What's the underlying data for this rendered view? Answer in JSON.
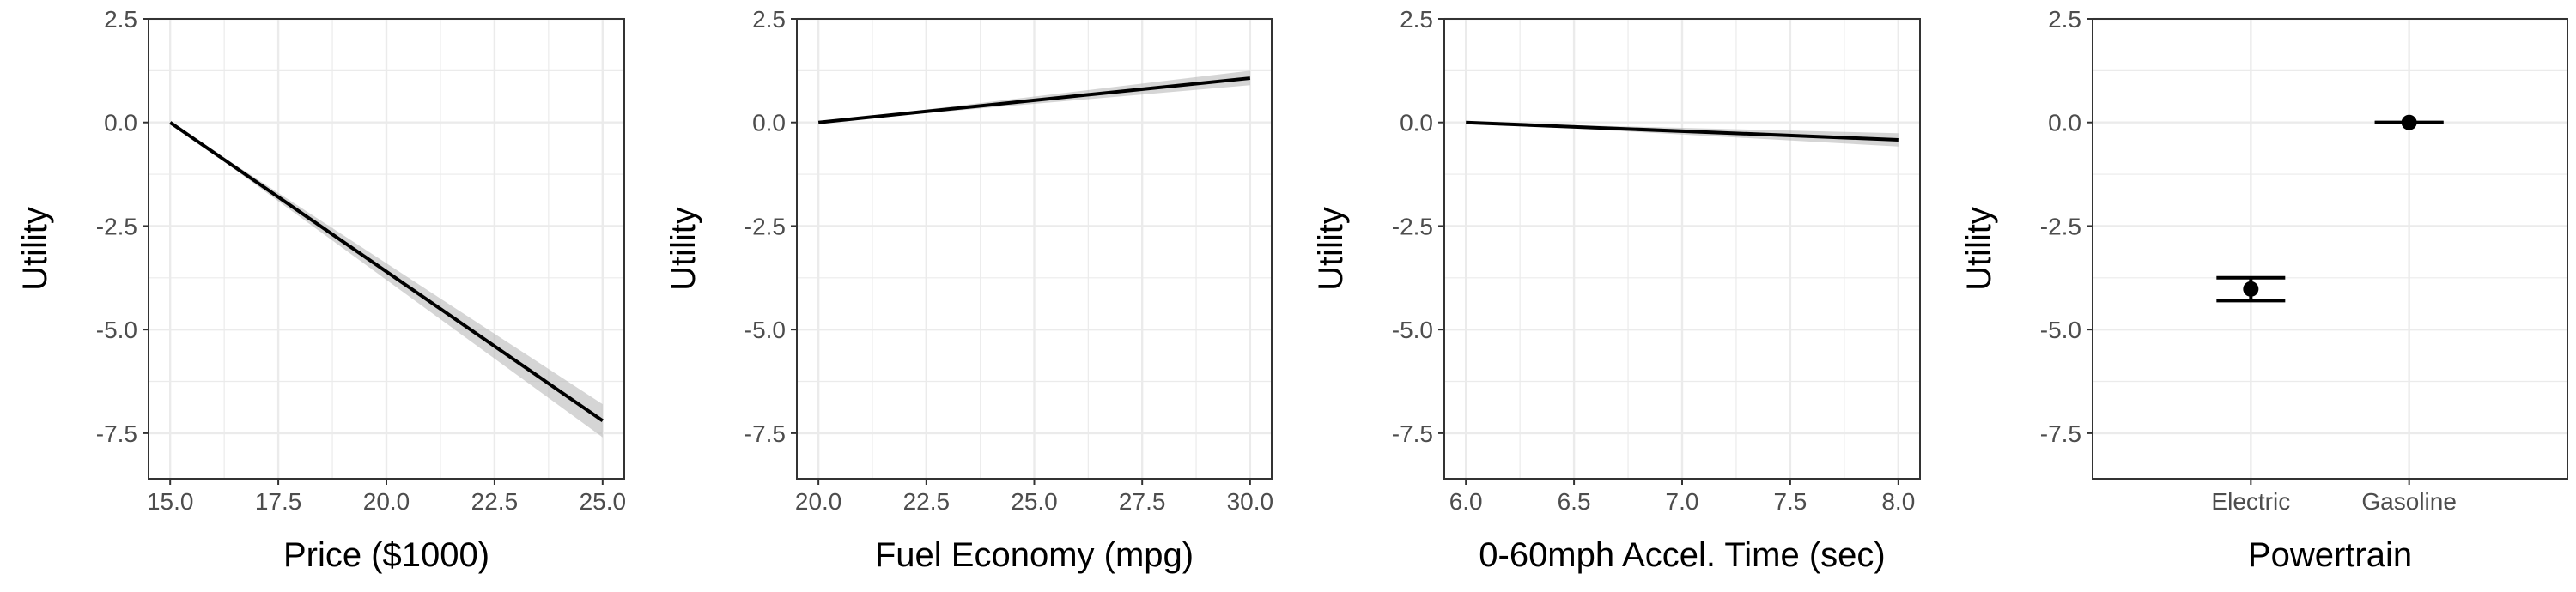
{
  "chart_data": [
    {
      "type": "line",
      "xlabel": "Price ($1000)",
      "ylabel": "Utility",
      "xlim": [
        14.5,
        25.5
      ],
      "ylim": [
        -8.6,
        2.5
      ],
      "xticks": [
        15.0,
        17.5,
        20.0,
        22.5,
        25.0
      ],
      "xtick_labels": [
        "15.0",
        "17.5",
        "20.0",
        "22.5",
        "25.0"
      ],
      "yticks": [
        2.5,
        0.0,
        -2.5,
        -5.0,
        -7.5
      ],
      "ytick_labels": [
        "2.5",
        "0.0",
        "-2.5",
        "-5.0",
        "-7.5"
      ],
      "x": [
        15.0,
        25.0
      ],
      "y": [
        0.0,
        -7.2
      ],
      "ci_lower": [
        0.0,
        -7.6
      ],
      "ci_upper": [
        0.0,
        -6.8
      ]
    },
    {
      "type": "line",
      "xlabel": "Fuel Economy (mpg)",
      "ylabel": "Utility",
      "xlim": [
        19.5,
        30.5
      ],
      "ylim": [
        -8.6,
        2.5
      ],
      "xticks": [
        20.0,
        22.5,
        25.0,
        27.5,
        30.0
      ],
      "xtick_labels": [
        "20.0",
        "22.5",
        "25.0",
        "27.5",
        "30.0"
      ],
      "yticks": [
        2.5,
        0.0,
        -2.5,
        -5.0,
        -7.5
      ],
      "ytick_labels": [
        "2.5",
        "0.0",
        "-2.5",
        "-5.0",
        "-7.5"
      ],
      "x": [
        20.0,
        30.0
      ],
      "y": [
        0.0,
        1.07
      ],
      "ci_lower": [
        0.0,
        0.9
      ],
      "ci_upper": [
        0.0,
        1.25
      ]
    },
    {
      "type": "line",
      "xlabel": "0-60mph Accel. Time (sec)",
      "ylabel": "Utility",
      "xlim": [
        5.9,
        8.1
      ],
      "ylim": [
        -8.6,
        2.5
      ],
      "xticks": [
        6.0,
        6.5,
        7.0,
        7.5,
        8.0
      ],
      "xtick_labels": [
        "6.0",
        "6.5",
        "7.0",
        "7.5",
        "8.0"
      ],
      "yticks": [
        2.5,
        0.0,
        -2.5,
        -5.0,
        -7.5
      ],
      "ytick_labels": [
        "2.5",
        "0.0",
        "-2.5",
        "-5.0",
        "-7.5"
      ],
      "x": [
        6.0,
        8.0
      ],
      "y": [
        0.0,
        -0.42
      ],
      "ci_lower": [
        0.0,
        -0.58
      ],
      "ci_upper": [
        0.0,
        -0.26
      ]
    },
    {
      "type": "scatter",
      "xlabel": "Powertrain",
      "ylabel": "Utility",
      "ylim": [
        -8.6,
        2.5
      ],
      "yticks": [
        2.5,
        0.0,
        -2.5,
        -5.0,
        -7.5
      ],
      "ytick_labels": [
        "2.5",
        "0.0",
        "-2.5",
        "-5.0",
        "-7.5"
      ],
      "categories": [
        "Electric",
        "Gasoline"
      ],
      "values": [
        -4.02,
        0.0
      ],
      "err_lower": [
        -4.3,
        0.0
      ],
      "err_upper": [
        -3.75,
        0.0
      ]
    }
  ]
}
